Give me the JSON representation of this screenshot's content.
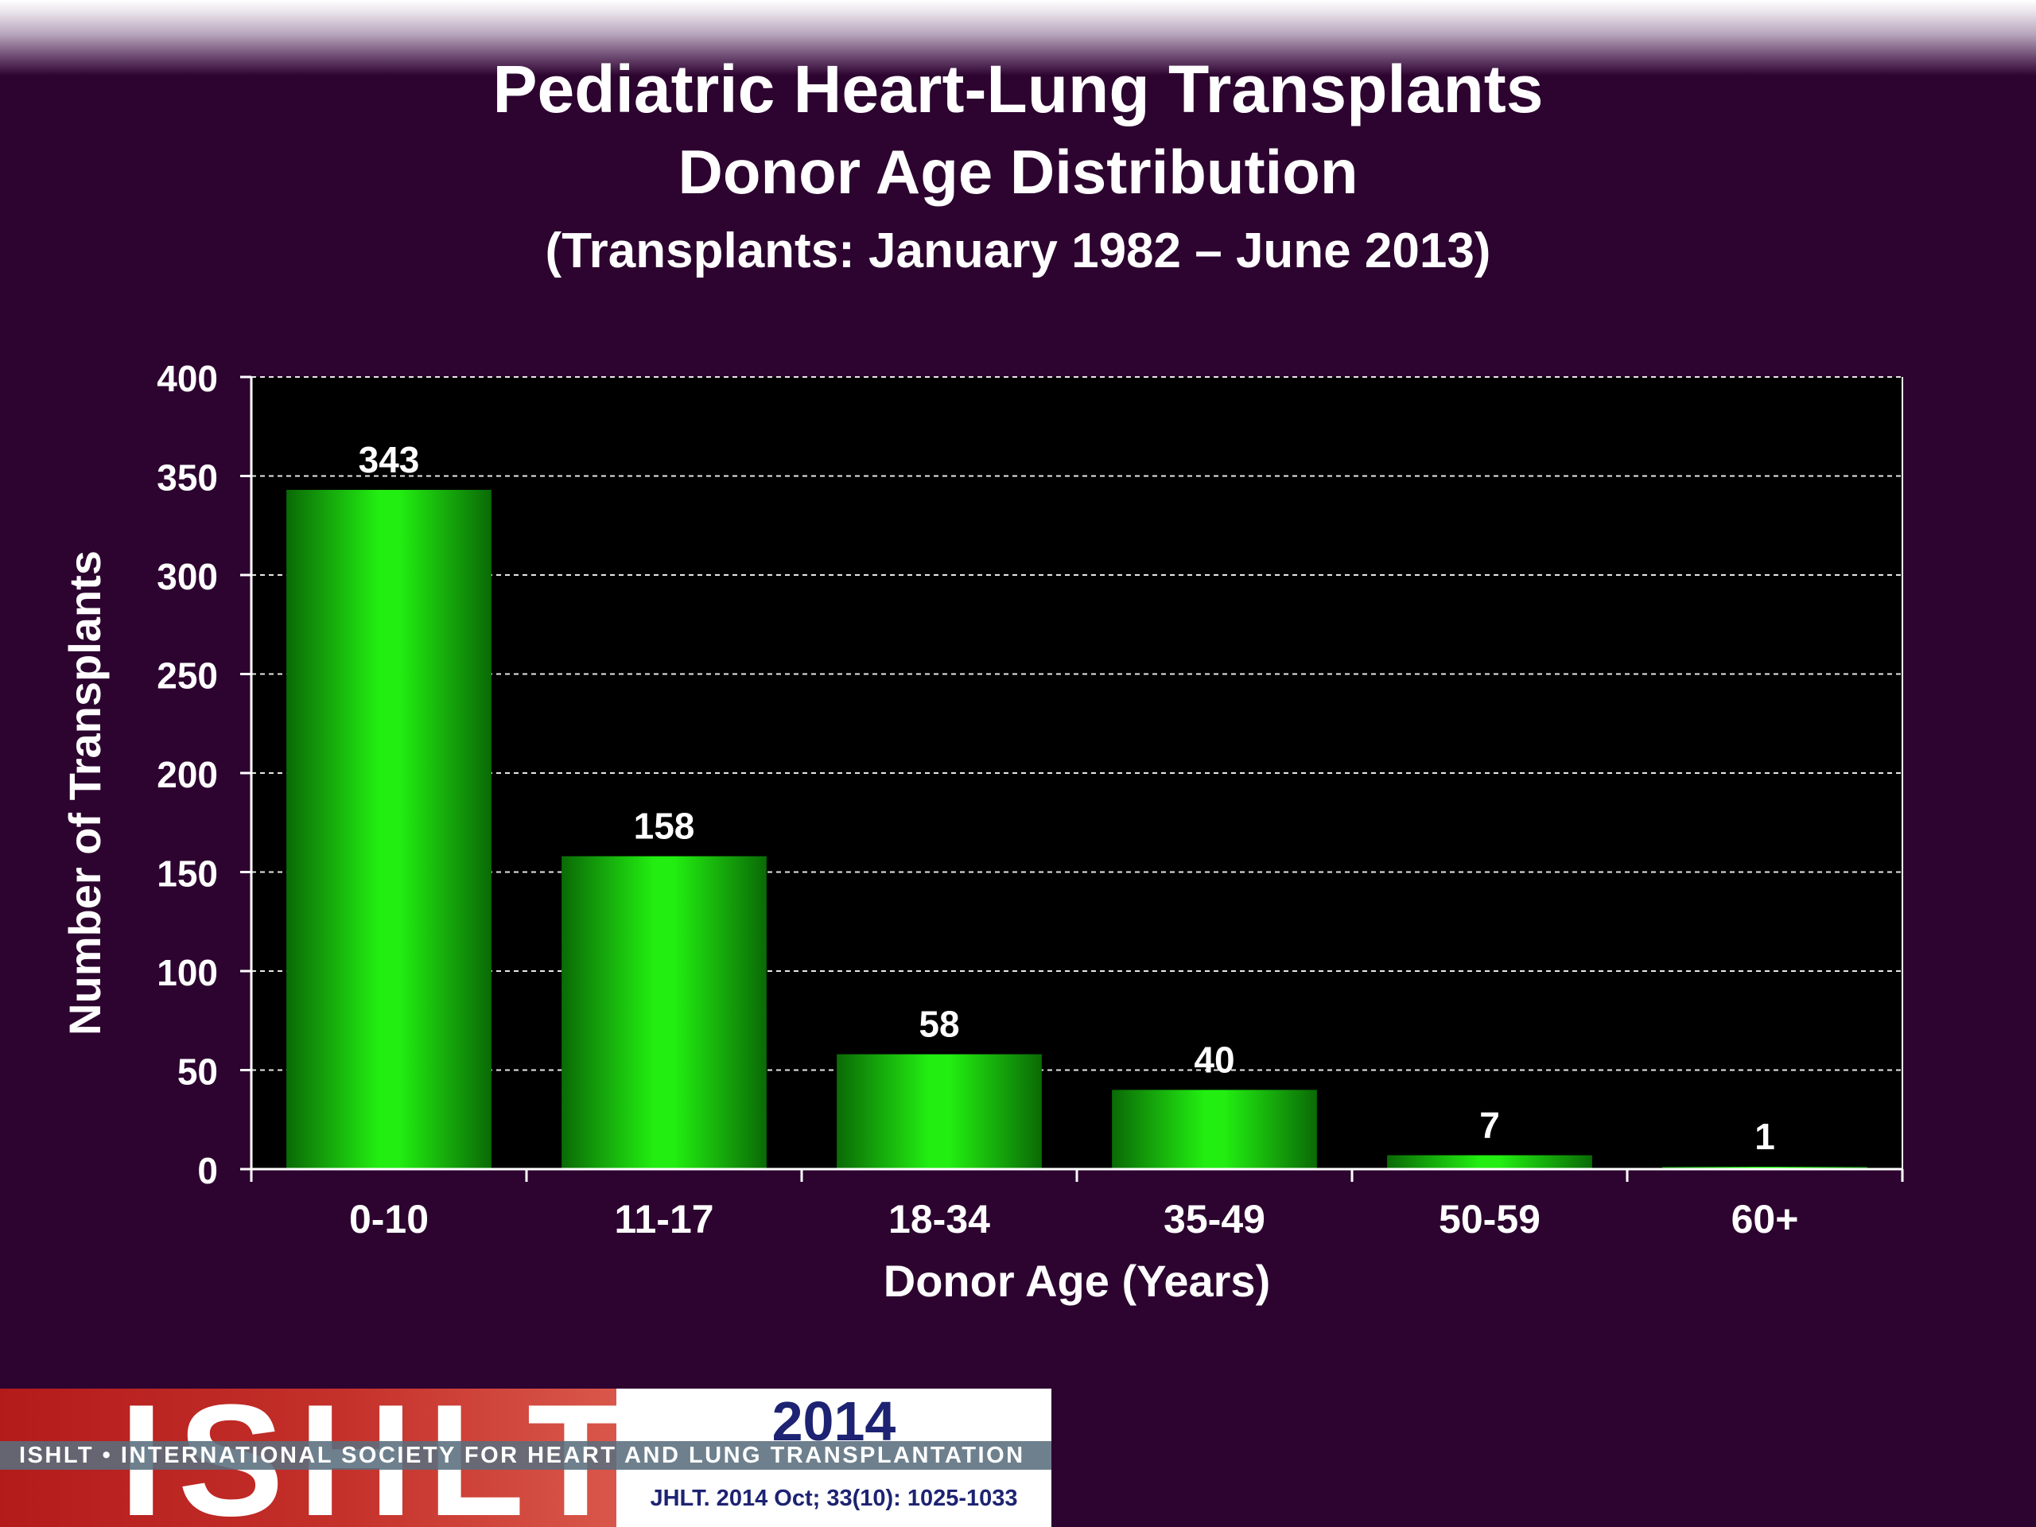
{
  "header": {
    "title": "Pediatric Heart-Lung Transplants",
    "subtitle": "Donor Age Distribution",
    "period": "(Transplants: January 1982 –  June 2013)"
  },
  "chart_data": {
    "type": "bar",
    "categories": [
      "0-10",
      "11-17",
      "18-34",
      "35-49",
      "50-59",
      "60+"
    ],
    "values": [
      343,
      158,
      58,
      40,
      7,
      1
    ],
    "data_labels": [
      "343",
      "158",
      "58",
      "40",
      "7",
      "1"
    ],
    "xlabel": "Donor  Age (Years)",
    "ylabel": "Number of Transplants",
    "ylim": [
      0,
      400
    ],
    "yticks": [
      0,
      50,
      100,
      150,
      200,
      250,
      300,
      350,
      400
    ],
    "grid": true,
    "legend": "none",
    "colors": {
      "bar": "#22ee11",
      "bar_edge": "#0a6a06",
      "plot_background": "#000000",
      "page_background": "#2d0430"
    }
  },
  "footer": {
    "logo_text": "ISHLT",
    "year": "2014",
    "society": "ISHLT • INTERNATIONAL SOCIETY FOR HEART AND LUNG TRANSPLANTATION",
    "citation": "JHLT. 2014 Oct; 33(10): 1025-1033"
  }
}
